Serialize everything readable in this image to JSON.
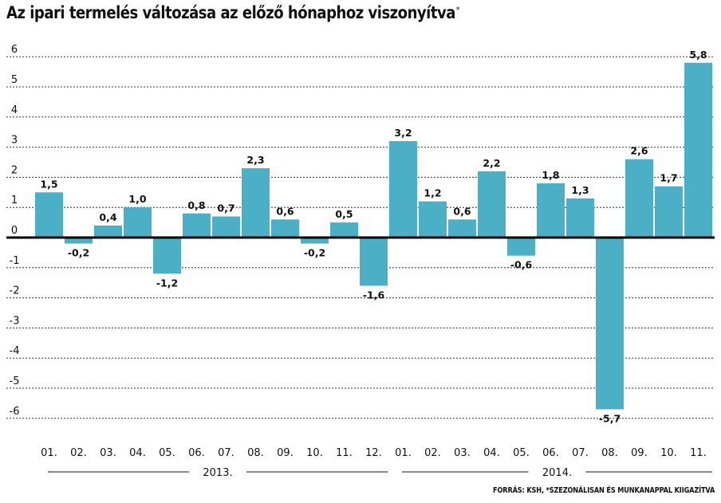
{
  "chart_data": {
    "type": "bar",
    "title": "Az ipari termelés változása az előző hónaphoz viszonyítva",
    "title_mark": "*",
    "source": "FORRÁS: KSH, *SZEZONÁLISAN ÉS MUNKANAPPAL KIIGAZÍTVA",
    "categories": [
      "01.",
      "02.",
      "03.",
      "04.",
      "05.",
      "06.",
      "07.",
      "08.",
      "09.",
      "10.",
      "11.",
      "12.",
      "01.",
      "02.",
      "03.",
      "04.",
      "05.",
      "06.",
      "07.",
      "08.",
      "09.",
      "10.",
      "11."
    ],
    "values": [
      1.5,
      -0.2,
      0.4,
      1.0,
      -1.2,
      0.8,
      0.7,
      2.3,
      0.6,
      -0.2,
      0.5,
      -1.6,
      3.2,
      1.2,
      0.6,
      2.2,
      -0.6,
      1.8,
      1.3,
      -5.7,
      2.6,
      1.7,
      5.8
    ],
    "value_labels": [
      "1,5",
      "-0,2",
      "0,4",
      "1,0",
      "-1,2",
      "0,8",
      "0,7",
      "2,3",
      "0,6",
      "-0,2",
      "0,5",
      "-1,6",
      "3,2",
      "1,2",
      "0,6",
      "2,2",
      "-0,6",
      "1,8",
      "1,3",
      "-5,7",
      "2,6",
      "1,7",
      "5,8"
    ],
    "year_groups": [
      {
        "label": "2013.",
        "start": 0,
        "end": 11
      },
      {
        "label": "2014.",
        "start": 12,
        "end": 22
      }
    ],
    "y_ticks": [
      6,
      5,
      4,
      3,
      2,
      1,
      0,
      -1,
      -2,
      -3,
      -4,
      -5,
      -6
    ],
    "ylim": [
      -6.3,
      6.3
    ],
    "grid": true,
    "colors": {
      "bar": "#4bafc6",
      "grid": "#333333",
      "zero": "#000000"
    }
  }
}
